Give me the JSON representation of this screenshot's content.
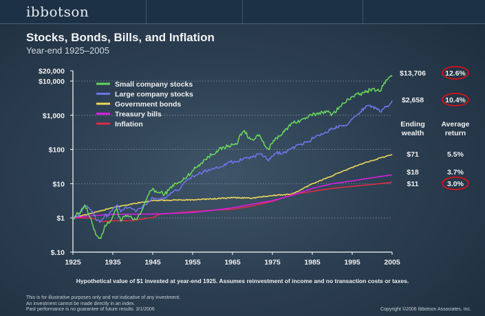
{
  "brand": "ibbotson",
  "disclaimer": [
    "This is for illustrative purposes only and not indicative of any investment.",
    "An investment cannot be made directly in an index.",
    "Past performance is no guarantee of future results. 3/1/2006"
  ],
  "copyright": "Copyright ©2006 Ibbotson Associates, Inc.",
  "chart_data": {
    "type": "line",
    "title": "Stocks, Bonds, Bills, and Inflation",
    "subtitle": "Year-end 1925–2005",
    "footnote": "Hypothetical value of $1 invested at year-end 1925. Assumes reinvestment of income and no transaction costs or taxes.",
    "y_scale": "log",
    "xlim": [
      1925,
      2005
    ],
    "ylim": [
      0.1,
      20000
    ],
    "x_ticks": [
      1925,
      1935,
      1945,
      1955,
      1965,
      1975,
      1985,
      1995,
      2005
    ],
    "y_ticks": [
      {
        "value": 0.1,
        "label": "$.10"
      },
      {
        "value": 1,
        "label": "$1"
      },
      {
        "value": 10,
        "label": "$10"
      },
      {
        "value": 100,
        "label": "$100"
      },
      {
        "value": 1000,
        "label": "$1,000"
      },
      {
        "value": 10000,
        "label": "$10,000"
      },
      {
        "value": 20000,
        "label": "$20,000"
      }
    ],
    "columns": {
      "ending_wealth": "Ending\nwealth",
      "average_return": "Average\nreturn"
    },
    "series": [
      {
        "name": "Small company stocks",
        "color": "#66d45a",
        "ending_wealth": "$13,706",
        "average_return": "12.6%",
        "highlight": true,
        "x": [
          1925,
          1927,
          1928,
          1929,
          1930,
          1931,
          1932,
          1933,
          1934,
          1935,
          1936,
          1937,
          1938,
          1939,
          1940,
          1941,
          1942,
          1943,
          1944,
          1945,
          1946,
          1947,
          1948,
          1949,
          1950,
          1952,
          1955,
          1958,
          1961,
          1964,
          1966,
          1967,
          1968,
          1969,
          1970,
          1971,
          1972,
          1973,
          1974,
          1975,
          1976,
          1978,
          1980,
          1982,
          1984,
          1986,
          1988,
          1990,
          1992,
          1995,
          1998,
          2000,
          2002,
          2003,
          2005
        ],
        "y": [
          1,
          1.6,
          2.4,
          1.2,
          0.6,
          0.3,
          0.25,
          0.6,
          0.7,
          1.1,
          1.9,
          0.8,
          1.1,
          1.1,
          0.9,
          0.9,
          1.4,
          2.8,
          4.8,
          7.3,
          5.5,
          5.5,
          5.0,
          6.4,
          9.1,
          11,
          24,
          50,
          90,
          130,
          140,
          280,
          360,
          210,
          200,
          250,
          230,
          130,
          100,
          150,
          220,
          330,
          600,
          700,
          900,
          1100,
          1300,
          1100,
          1800,
          3600,
          4500,
          6000,
          5000,
          9000,
          13706
        ]
      },
      {
        "name": "Large company stocks",
        "color": "#6b75e6",
        "ending_wealth": "$2,658",
        "average_return": "10.4%",
        "highlight": true,
        "x": [
          1925,
          1926,
          1927,
          1928,
          1929,
          1930,
          1931,
          1932,
          1933,
          1934,
          1935,
          1936,
          1937,
          1938,
          1939,
          1940,
          1941,
          1942,
          1943,
          1944,
          1945,
          1946,
          1948,
          1950,
          1952,
          1954,
          1956,
          1958,
          1960,
          1962,
          1964,
          1966,
          1968,
          1970,
          1972,
          1973,
          1974,
          1975,
          1976,
          1978,
          1980,
          1982,
          1984,
          1986,
          1988,
          1990,
          1992,
          1994,
          1995,
          1996,
          1997,
          1998,
          1999,
          2000,
          2001,
          2002,
          2003,
          2004,
          2005
        ],
        "y": [
          1,
          1.12,
          1.53,
          2.2,
          2.0,
          1.5,
          0.84,
          0.8,
          1.2,
          1.2,
          1.8,
          2.4,
          1.5,
          2.0,
          2.0,
          1.8,
          1.6,
          1.9,
          2.4,
          2.9,
          3.9,
          3.6,
          3.9,
          5.6,
          7.5,
          14,
          18,
          23,
          28,
          31,
          43,
          44,
          56,
          59,
          74,
          63,
          46,
          64,
          79,
          80,
          110,
          140,
          170,
          250,
          300,
          400,
          500,
          560,
          770,
          950,
          1260,
          1630,
          1970,
          1830,
          1610,
          1250,
          1610,
          1780,
          2658
        ]
      },
      {
        "name": "Government bonds",
        "color": "#f0d95a",
        "ending_wealth": "$71",
        "average_return": "5.5%",
        "highlight": false,
        "x": [
          1925,
          1930,
          1935,
          1940,
          1945,
          1950,
          1955,
          1960,
          1965,
          1970,
          1975,
          1980,
          1982,
          1985,
          1990,
          1995,
          2000,
          2005
        ],
        "y": [
          1,
          1.4,
          2.0,
          2.6,
          3.2,
          3.3,
          3.4,
          3.6,
          3.9,
          3.8,
          4.5,
          5.0,
          6.5,
          10,
          17,
          30,
          48,
          71
        ]
      },
      {
        "name": "Treasury bills",
        "color": "#d81ee0",
        "ending_wealth": "$18",
        "average_return": "3.7%",
        "highlight": false,
        "x": [
          1925,
          1930,
          1935,
          1940,
          1945,
          1950,
          1955,
          1960,
          1965,
          1970,
          1975,
          1980,
          1985,
          1990,
          1995,
          2000,
          2005
        ],
        "y": [
          1,
          1.17,
          1.27,
          1.28,
          1.3,
          1.35,
          1.45,
          1.66,
          1.97,
          2.52,
          3.2,
          4.6,
          7.3,
          10.0,
          12.0,
          15.0,
          18
        ]
      },
      {
        "name": "Inflation",
        "color": "#e02a46",
        "ending_wealth": "$11",
        "average_return": "3.0%",
        "highlight": true,
        "x": [
          1925,
          1930,
          1932,
          1935,
          1940,
          1945,
          1947,
          1950,
          1955,
          1960,
          1965,
          1970,
          1975,
          1980,
          1985,
          1990,
          1995,
          2000,
          2005
        ],
        "y": [
          1,
          0.98,
          0.78,
          0.82,
          0.84,
          1.03,
          1.3,
          1.38,
          1.53,
          1.68,
          1.8,
          2.23,
          3.05,
          4.8,
          6.0,
          7.3,
          8.35,
          9.5,
          11
        ]
      }
    ]
  }
}
